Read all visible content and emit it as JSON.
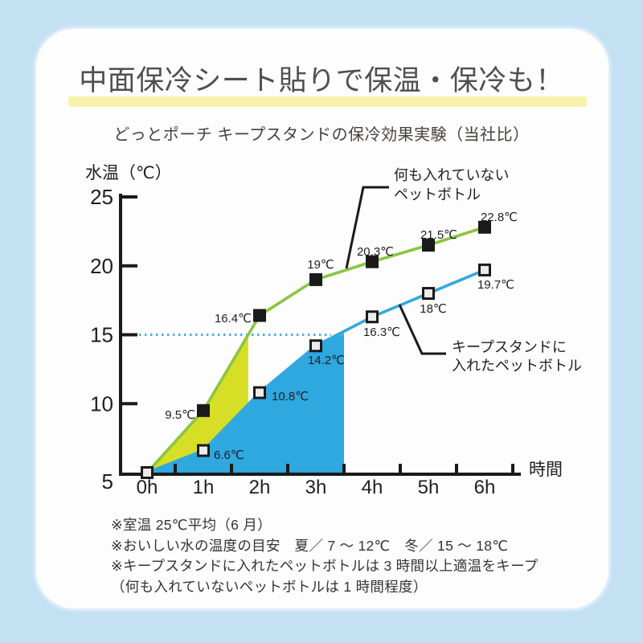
{
  "header": {
    "title": "中面保冷シート貼りで保温・保冷も！",
    "subtitle": "どっとポーチ キープスタンドの保冷効果実験（当社比）"
  },
  "colors": {
    "background": "#c4e1f4",
    "card": "#fdfdfd",
    "highlight_bar": "#f6f2ab",
    "title_text": "#4f4f4f",
    "body_text": "#333333",
    "axis": "#1a1a1a",
    "green_line": "#8bc540",
    "yellow_area": "#d6de26",
    "blue_line": "#33a8de",
    "blue_area": "#2fa7df",
    "reference_dotted": "#45aede",
    "marker_black": "#1a1a1a",
    "marker_white_fill": "#ececec"
  },
  "chart_data": {
    "type": "line",
    "title": "どっとポーチ キープスタンドの保冷効果実験（当社比）",
    "xlabel": "時間",
    "ylabel": "水温（℃）",
    "x_hours": [
      0,
      1,
      2,
      3,
      4,
      5,
      6
    ],
    "x_tick_labels": [
      "0h",
      "1h",
      "2h",
      "3h",
      "4h",
      "5h",
      "6h"
    ],
    "x_minor_ticks_hours": [
      0.5,
      1.5,
      2.5,
      3.5,
      4.5,
      5.5,
      6.5
    ],
    "y_ticks": [
      5,
      10,
      15,
      20,
      25
    ],
    "ylim": [
      5,
      25
    ],
    "grid": false,
    "legend_position": "inline-callouts",
    "reference_line": {
      "y": 15,
      "style": "dotted"
    },
    "series": [
      {
        "name": "何も入れていないペットボトル",
        "marker": "black-filled-square",
        "values": [
          5,
          9.5,
          16.4,
          19,
          20.3,
          21.5,
          22.8
        ],
        "point_labels": [
          "",
          "9.5℃",
          "16.4℃",
          "19℃",
          "20.3℃",
          "21.5℃",
          "22.8℃"
        ],
        "shaded_area": "gap-between-lines-from-0h-until-line-reaches-15c"
      },
      {
        "name": "キープスタンドに入れたペットボトル",
        "marker": "white-square-black-border",
        "values": [
          5,
          6.6,
          10.8,
          14.2,
          16.3,
          18,
          19.7
        ],
        "point_labels": [
          "",
          "6.6℃",
          "10.8℃",
          "14.2℃",
          "16.3℃",
          "18℃",
          "19.7℃"
        ],
        "shaded_area": "under-line-from-0h-until-3.5h"
      }
    ],
    "callouts": [
      {
        "target_series": "何も入れていないペットボトル",
        "lines": [
          "何も入れていない",
          "ペットボトル"
        ]
      },
      {
        "target_series": "キープスタンドに入れたペットボトル",
        "lines": [
          "キープスタンドに",
          "入れたペットボトル"
        ]
      }
    ]
  },
  "footnotes": [
    "※室温 25℃平均（6 月）",
    "※おいしい水の温度の目安　夏／ 7 ～ 12℃　冬／ 15 ～ 18℃",
    "※キープスタンドに入れたペットボトルは 3 時間以上適温をキープ",
    "（何も入れていないペットボトルは 1 時間程度）"
  ]
}
